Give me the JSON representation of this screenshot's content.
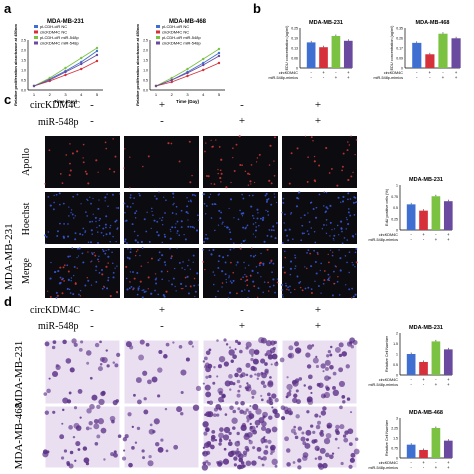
{
  "panel_letters": [
    "a",
    "b",
    "c",
    "d"
  ],
  "colors": {
    "blue": "#3f6fd1",
    "red": "#d6303a",
    "green": "#7cc242",
    "purple": "#6a4a9e",
    "panel_dark": "#0c0c10",
    "apollo_dot": "#d23a36",
    "hoechst_dot": "#3a5be0",
    "crystal_bg": "#e9dff0",
    "crystal_cell": "#5a2f86"
  },
  "legend_labels": [
    "pLCDH-ciR NC",
    "circKDM4C NC",
    "pLCDH-ciR miR-548p",
    "circKDM4C miR-548p"
  ],
  "matrix_labels": {
    "row1": "circKDM4C",
    "row2": "miR-548p",
    "row2_mimics": "miR-548p-mimics",
    "short_row1": "circKDM4C",
    "short_row2": "miR-548p-mimics",
    "plus": "+",
    "minus": "-"
  },
  "row_labels": {
    "apollo": "Apollo",
    "hoechst": "Hoechst",
    "merge": "Merge",
    "mda231": "MDA-MB-231",
    "mda468": "MDA-MB-468"
  },
  "chart_data": [
    {
      "type": "line",
      "title": "MDA-MB-231",
      "xlabel": "Time (Day)",
      "ylabel": "Relative proliferation absorbance at 450nm",
      "x": [
        1,
        2,
        3,
        4,
        5
      ],
      "ylim": [
        0,
        2.5
      ],
      "series": [
        {
          "name": "pLCDH-ciR NC",
          "values": [
            0.2,
            0.55,
            0.95,
            1.4,
            1.95
          ]
        },
        {
          "name": "circKDM4C NC",
          "values": [
            0.2,
            0.45,
            0.75,
            1.05,
            1.45
          ]
        },
        {
          "name": "pLCDH-ciR miR-548p",
          "values": [
            0.2,
            0.6,
            1.1,
            1.6,
            2.1
          ]
        },
        {
          "name": "circKDM4C miR-548p",
          "values": [
            0.2,
            0.5,
            0.9,
            1.3,
            1.75
          ]
        }
      ]
    },
    {
      "type": "line",
      "title": "MDA-MB-468",
      "xlabel": "Time (Day)",
      "ylabel": "Relative proliferation absorbance at 450nm",
      "x": [
        1,
        2,
        3,
        4,
        5
      ],
      "ylim": [
        0,
        2.5
      ],
      "series": [
        {
          "name": "pLCDH-ciR NC",
          "values": [
            0.2,
            0.5,
            0.9,
            1.35,
            1.85
          ]
        },
        {
          "name": "circKDM4C NC",
          "values": [
            0.2,
            0.4,
            0.7,
            1.0,
            1.35
          ]
        },
        {
          "name": "pLCDH-ciR miR-548p",
          "values": [
            0.2,
            0.6,
            1.05,
            1.55,
            2.05
          ]
        },
        {
          "name": "circKDM4C miR-548p",
          "values": [
            0.2,
            0.5,
            0.85,
            1.25,
            1.7
          ]
        }
      ]
    },
    {
      "type": "bar",
      "title": "MDA-MB-231",
      "ylabel": "EDU concentration (ug/ml)",
      "ylim": [
        0,
        0.25
      ],
      "values": [
        0.16,
        0.13,
        0.2,
        0.17
      ]
    },
    {
      "type": "bar",
      "title": "MDA-MB-468",
      "ylabel": "EDU concentration (ug/ml)",
      "ylim": [
        0,
        0.35
      ],
      "values": [
        0.22,
        0.12,
        0.3,
        0.26
      ]
    },
    {
      "type": "bar",
      "title": "MDA-MB-231",
      "ylabel": "EdU positive cells (%)",
      "ylim": [
        0,
        1.0
      ],
      "values": [
        0.57,
        0.43,
        0.75,
        0.64
      ]
    },
    {
      "type": "bar",
      "title": "MDA-MB-231",
      "ylabel": "Relative Cell Number",
      "ylim": [
        0,
        2.0
      ],
      "values": [
        1.0,
        0.62,
        1.6,
        1.22
      ]
    },
    {
      "type": "bar",
      "title": "MDA-MB-468",
      "ylabel": "Relative Cell Number",
      "ylim": [
        0,
        3.0
      ],
      "values": [
        1.0,
        0.6,
        2.25,
        1.3
      ]
    }
  ]
}
